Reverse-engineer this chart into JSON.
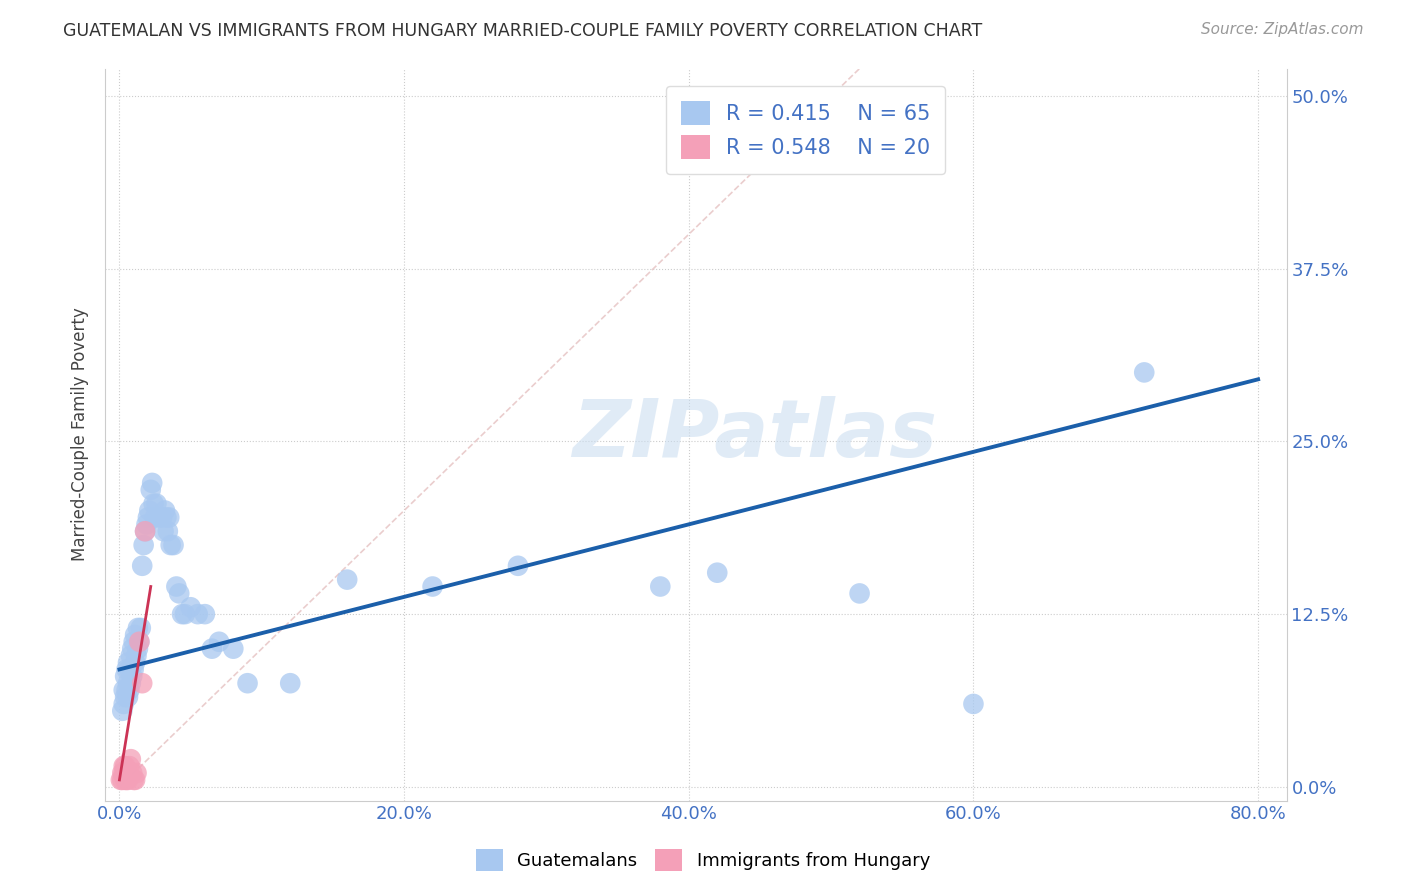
{
  "title": "GUATEMALAN VS IMMIGRANTS FROM HUNGARY MARRIED-COUPLE FAMILY POVERTY CORRELATION CHART",
  "source": "Source: ZipAtlas.com",
  "xlabel_ticks": [
    "0.0%",
    "20.0%",
    "40.0%",
    "60.0%",
    "80.0%"
  ],
  "xlabel_tick_vals": [
    0.0,
    0.2,
    0.4,
    0.6,
    0.8
  ],
  "ylabel_ticks": [
    "0.0%",
    "12.5%",
    "25.0%",
    "37.5%",
    "50.0%"
  ],
  "ylabel_tick_vals": [
    0.0,
    0.125,
    0.25,
    0.375,
    0.5
  ],
  "ylabel_label": "Married-Couple Family Poverty",
  "xlim": [
    -0.01,
    0.82
  ],
  "ylim": [
    -0.01,
    0.52
  ],
  "blue_R": 0.415,
  "blue_N": 65,
  "pink_R": 0.548,
  "pink_N": 20,
  "blue_color": "#A8C8F0",
  "pink_color": "#F4A0B8",
  "blue_line_color": "#1B5FAA",
  "pink_line_color": "#CC3355",
  "diag_line_color": "#E8C8C8",
  "watermark": "ZIPatlas",
  "legend_label_blue": "Guatemalans",
  "legend_label_pink": "Immigrants from Hungary",
  "blue_x": [
    0.002,
    0.003,
    0.003,
    0.004,
    0.004,
    0.005,
    0.005,
    0.006,
    0.006,
    0.006,
    0.007,
    0.007,
    0.008,
    0.008,
    0.009,
    0.009,
    0.01,
    0.01,
    0.011,
    0.011,
    0.012,
    0.013,
    0.013,
    0.014,
    0.015,
    0.016,
    0.017,
    0.018,
    0.019,
    0.02,
    0.021,
    0.022,
    0.023,
    0.024,
    0.025,
    0.026,
    0.028,
    0.03,
    0.031,
    0.032,
    0.033,
    0.034,
    0.035,
    0.036,
    0.038,
    0.04,
    0.042,
    0.044,
    0.046,
    0.05,
    0.055,
    0.06,
    0.065,
    0.07,
    0.08,
    0.09,
    0.12,
    0.16,
    0.22,
    0.28,
    0.38,
    0.42,
    0.52,
    0.6,
    0.72
  ],
  "blue_y": [
    0.055,
    0.06,
    0.07,
    0.065,
    0.08,
    0.07,
    0.085,
    0.065,
    0.075,
    0.09,
    0.07,
    0.085,
    0.075,
    0.095,
    0.08,
    0.1,
    0.085,
    0.105,
    0.09,
    0.11,
    0.095,
    0.1,
    0.115,
    0.105,
    0.115,
    0.16,
    0.175,
    0.185,
    0.19,
    0.195,
    0.2,
    0.215,
    0.22,
    0.205,
    0.195,
    0.205,
    0.195,
    0.195,
    0.185,
    0.2,
    0.195,
    0.185,
    0.195,
    0.175,
    0.175,
    0.145,
    0.14,
    0.125,
    0.125,
    0.13,
    0.125,
    0.125,
    0.1,
    0.105,
    0.1,
    0.075,
    0.075,
    0.15,
    0.145,
    0.16,
    0.145,
    0.155,
    0.14,
    0.06,
    0.3
  ],
  "pink_x": [
    0.001,
    0.002,
    0.002,
    0.003,
    0.003,
    0.004,
    0.004,
    0.005,
    0.005,
    0.006,
    0.006,
    0.007,
    0.008,
    0.009,
    0.01,
    0.011,
    0.012,
    0.014,
    0.016,
    0.018
  ],
  "pink_y": [
    0.005,
    0.005,
    0.01,
    0.01,
    0.015,
    0.005,
    0.015,
    0.005,
    0.01,
    0.005,
    0.01,
    0.015,
    0.02,
    0.01,
    0.005,
    0.005,
    0.01,
    0.105,
    0.075,
    0.185
  ],
  "blue_line_x": [
    0.0,
    0.8
  ],
  "blue_line_y": [
    0.085,
    0.295
  ],
  "pink_line_x": [
    0.0,
    0.022
  ],
  "pink_line_y": [
    0.005,
    0.145
  ],
  "diag_line_x": [
    0.0,
    0.52
  ],
  "diag_line_y": [
    0.0,
    0.52
  ]
}
